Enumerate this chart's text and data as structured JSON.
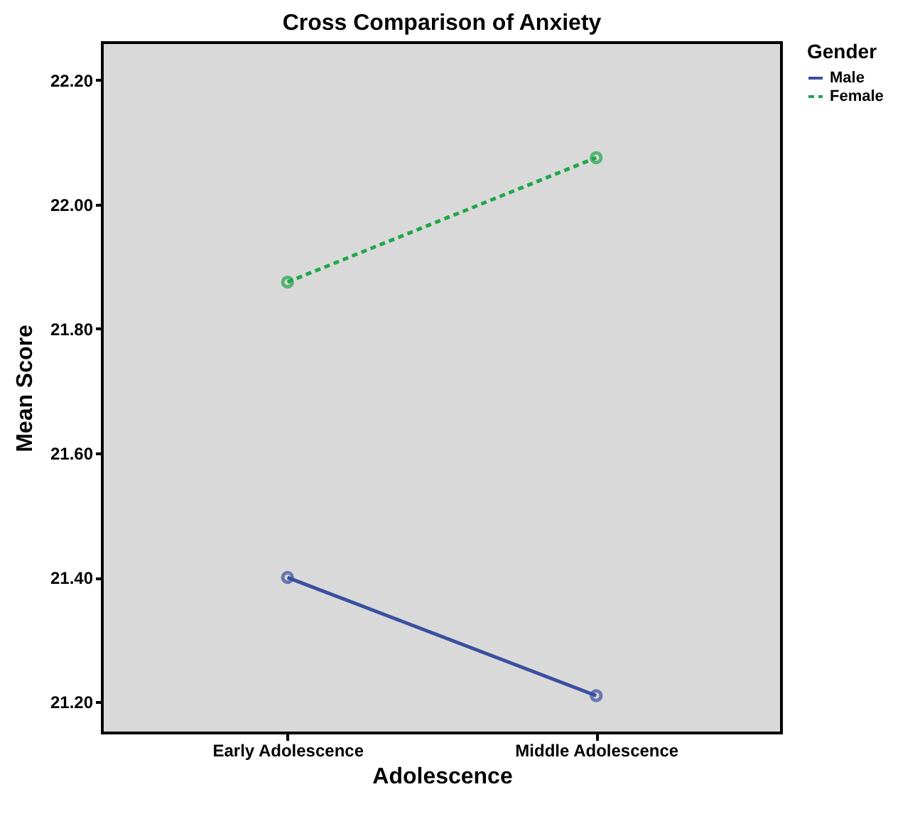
{
  "chart_data": {
    "type": "line",
    "title": "Cross Comparison of Anxiety",
    "xlabel": "Adolescence",
    "ylabel": "Mean Score",
    "legend_title": "Gender",
    "categories": [
      "Early Adolescence",
      "Middle Adolescence"
    ],
    "series": [
      {
        "name": "Male",
        "color": "#3a4fa0",
        "values": [
          21.4,
          21.21
        ],
        "line_style": "solid"
      },
      {
        "name": "Female",
        "color": "#1fa64a",
        "values": [
          21.875,
          22.075
        ],
        "line_style": "dashed"
      }
    ],
    "ylim": [
      21.15,
      22.26
    ],
    "yticks": [
      {
        "value": 21.2,
        "label": "21.20"
      },
      {
        "value": 21.4,
        "label": "21.40"
      },
      {
        "value": 21.6,
        "label": "21.60"
      },
      {
        "value": 21.8,
        "label": "21.80"
      },
      {
        "value": 22.0,
        "label": "22.00"
      },
      {
        "value": 22.2,
        "label": "22.20"
      }
    ],
    "marker": "circle",
    "grid": false,
    "legend": "top right"
  }
}
